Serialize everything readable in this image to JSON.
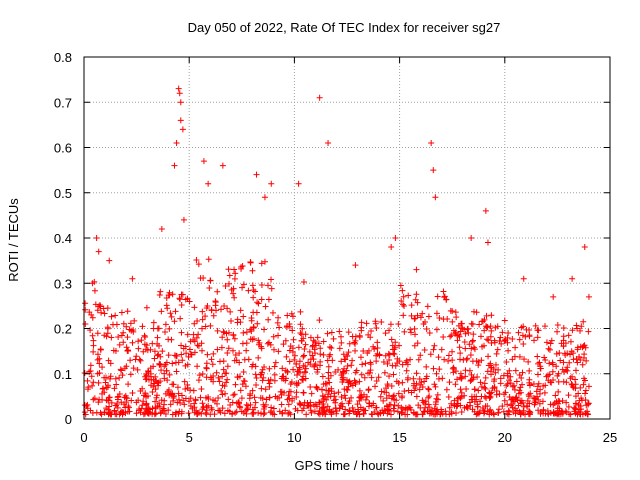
{
  "chart_data": {
    "type": "scatter",
    "title": "Day 050 of 2022, Rate Of TEC Index for receiver sg27",
    "xlabel": "GPS time / hours",
    "ylabel": "ROTI / TECUs",
    "xlim": [
      0,
      25
    ],
    "ylim": [
      0,
      0.8
    ],
    "xticks": [
      "0",
      "5",
      "10",
      "15",
      "20",
      "25"
    ],
    "yticks": [
      "0",
      "0.1",
      "0.2",
      "0.3",
      "0.4",
      "0.5",
      "0.6",
      "0.7",
      "0.8"
    ],
    "grid": true,
    "marker": "plus",
    "color": "#ff0000",
    "series": [
      {
        "x": [
          0.4,
          0.6,
          0.7,
          1.2,
          2.3,
          3.7,
          4.3,
          4.4,
          4.5,
          4.55,
          4.6,
          4.6,
          4.7,
          4.75,
          5.7,
          5.9,
          6.6,
          8.2,
          8.6,
          8.9,
          10.2,
          11.2,
          11.6,
          12.9,
          14.6,
          14.8,
          15.8,
          16.5,
          16.6,
          16.7,
          18.4,
          19.1,
          19.2,
          20.9,
          22.3,
          23.2,
          23.8,
          24.0
        ],
        "y": [
          0.3,
          0.4,
          0.37,
          0.35,
          0.31,
          0.42,
          0.56,
          0.61,
          0.73,
          0.72,
          0.66,
          0.7,
          0.64,
          0.44,
          0.57,
          0.52,
          0.56,
          0.54,
          0.49,
          0.52,
          0.52,
          0.71,
          0.61,
          0.34,
          0.38,
          0.4,
          0.33,
          0.61,
          0.55,
          0.49,
          0.4,
          0.46,
          0.39,
          0.31,
          0.27,
          0.31,
          0.38,
          0.27
        ]
      }
    ]
  }
}
